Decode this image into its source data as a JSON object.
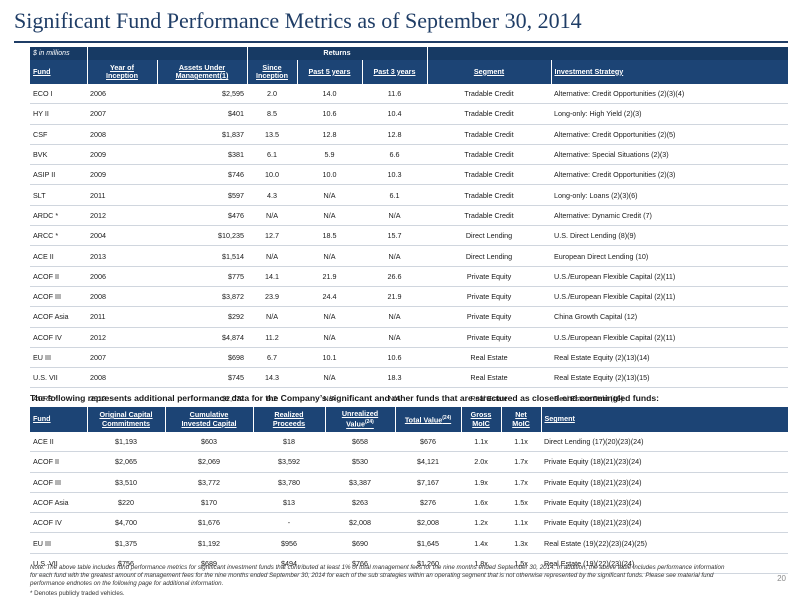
{
  "page": {
    "title": "Significant Fund Performance Metrics as of September 30, 2014",
    "page_number": "20",
    "units_label": "$ in millions",
    "returns_label": "Returns",
    "mid_note": "The following represents additional performance data for the Company’s significant and other funds that are structured as closed-end commingled funds:",
    "footnote": "Note: The above table includes fund performance metrics for significant investment funds that contributed at least 1% of total management fees for the nine months ended September 30, 2014. In addition, the above table includes performance information for each fund with the greatest amount of management fees for the nine months ended September 30, 2014 for each of the sub strategies within an operating segment that is not otherwise represented by the significant funds. Please see material fund performance endnotes on the following page for additional information.",
    "asterisk_note": "* Denotes publicly traded vehicles."
  },
  "table1": {
    "headers": {
      "fund": "Fund",
      "year_l1": "Year of",
      "year_l2": "Inception",
      "aum_l1": "Assets Under",
      "aum_l2": "Management(1)",
      "since_l1": "Since",
      "since_l2": "Inception",
      "p5": "Past 5 years",
      "p3": "Past 3 years",
      "segment": "Segment",
      "strategy": "Investment Strategy"
    },
    "rows": [
      [
        "ECO I",
        "2006",
        "$2,595",
        "2.0",
        "14.0",
        "11.6",
        "Tradable Credit",
        "Alternative: Credit Opportunities (2)(3)(4)"
      ],
      [
        "HY II",
        "2007",
        "$401",
        "8.5",
        "10.6",
        "10.4",
        "Tradable Credit",
        "Long-only: High Yield (2)(3)"
      ],
      [
        "CSF",
        "2008",
        "$1,837",
        "13.5",
        "12.8",
        "12.8",
        "Tradable Credit",
        "Alternative: Credit Opportunities (2)(5)"
      ],
      [
        "BVK",
        "2009",
        "$381",
        "6.1",
        "5.9",
        "6.6",
        "Tradable Credit",
        "Alternative: Special Situations (2)(3)"
      ],
      [
        "ASIP II",
        "2009",
        "$746",
        "10.0",
        "10.0",
        "10.3",
        "Tradable Credit",
        "Alternative: Credit Opportunities (2)(3)"
      ],
      [
        "SLT",
        "2011",
        "$597",
        "4.3",
        "N/A",
        "6.1",
        "Tradable Credit",
        "Long-only: Loans (2)(3)(6)"
      ],
      [
        "ARDC *",
        "2012",
        "$476",
        "N/A",
        "N/A",
        "N/A",
        "Tradable Credit",
        "Alternative: Dynamic Credit (7)"
      ],
      [
        "ARCC *",
        "2004",
        "$10,235",
        "12.7",
        "18.5",
        "15.7",
        "Direct Lending",
        "U.S. Direct Lending (8)(9)"
      ],
      [
        "ACE II",
        "2013",
        "$1,514",
        "N/A",
        "N/A",
        "N/A",
        "Direct Lending",
        "European Direct Lending (10)"
      ],
      [
        "ACOF II",
        "2006",
        "$775",
        "14.1",
        "21.9",
        "26.6",
        "Private Equity",
        "U.S./European Flexible Capital (2)(11)"
      ],
      [
        "ACOF III",
        "2008",
        "$3,872",
        "23.9",
        "24.4",
        "21.9",
        "Private Equity",
        "U.S./European Flexible Capital (2)(11)"
      ],
      [
        "ACOF Asia",
        "2011",
        "$292",
        "N/A",
        "N/A",
        "N/A",
        "Private Equity",
        "China Growth Capital (12)"
      ],
      [
        "ACOF IV",
        "2012",
        "$4,874",
        "11.2",
        "N/A",
        "N/A",
        "Private Equity",
        "U.S./European Flexible Capital (2)(11)"
      ],
      [
        "EU III",
        "2007",
        "$698",
        "6.7",
        "10.1",
        "10.6",
        "Real Estate",
        "Real Estate Equity (2)(13)(14)"
      ],
      [
        "U.S. VII",
        "2008",
        "$745",
        "14.3",
        "N/A",
        "18.3",
        "Real Estate",
        "Real Estate Equity (2)(13)(15)"
      ],
      [
        "ACRE *",
        "2012",
        "$2,072",
        "6.2",
        "N/A",
        "N/A",
        "Real Estate",
        "Real Estate Debt (16)"
      ]
    ]
  },
  "table2": {
    "headers": {
      "fund": "Fund",
      "occ_l1": "Original Capital",
      "occ_l2": "Commitments",
      "cic_l1": "Cumulative",
      "cic_l2": "Invested Capital",
      "rp_l1": "Realized",
      "rp_l2": "Proceeds",
      "uv_l1": "Unrealized",
      "uv_l2": "Value",
      "uv_sup": "(24)",
      "tv": "Total Value",
      "tv_sup": "(24)",
      "gross_l1": "Gross",
      "gross_l2": "MoIC",
      "net_l1": "Net",
      "net_l2": "MoIC",
      "segment": "Segment"
    },
    "rows": [
      [
        "ACE II",
        "$1,193",
        "$603",
        "$18",
        "$658",
        "$676",
        "1.1x",
        "1.1x",
        "Direct Lending (17)(20)(23)(24)"
      ],
      [
        "ACOF II",
        "$2,065",
        "$2,069",
        "$3,592",
        "$530",
        "$4,121",
        "2.0x",
        "1.7x",
        "Private Equity (18)(21)(23)(24)"
      ],
      [
        "ACOF III",
        "$3,510",
        "$3,772",
        "$3,780",
        "$3,387",
        "$7,167",
        "1.9x",
        "1.7x",
        "Private Equity (18)(21)(23)(24)"
      ],
      [
        "ACOF Asia",
        "$220",
        "$170",
        "$13",
        "$263",
        "$276",
        "1.6x",
        "1.5x",
        "Private Equity (18)(21)(23)(24)"
      ],
      [
        "ACOF IV",
        "$4,700",
        "$1,676",
        "-",
        "$2,008",
        "$2,008",
        "1.2x",
        "1.1x",
        "Private Equity (18)(21)(23)(24)"
      ],
      [
        "EU III",
        "$1,375",
        "$1,192",
        "$956",
        "$690",
        "$1,645",
        "1.4x",
        "1.3x",
        "Real Estate (19)(22)(23)(24)(25)"
      ],
      [
        "U.S. VII",
        "$756",
        "$689",
        "$494",
        "$766",
        "$1,260",
        "1.8x",
        "1.5x",
        "Real Estate (19)(22)(23)(24)"
      ]
    ]
  }
}
